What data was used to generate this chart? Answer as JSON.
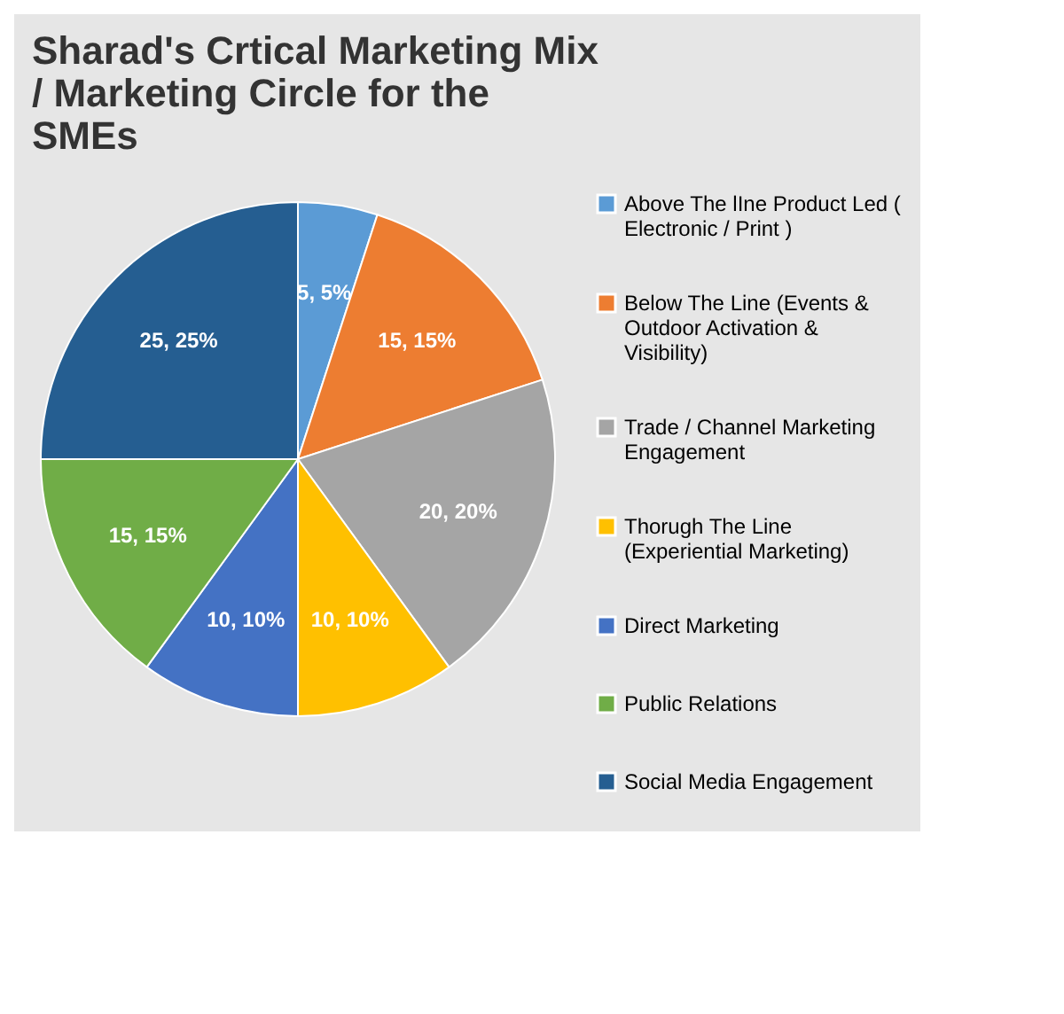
{
  "chart_data": {
    "type": "pie",
    "title": "Sharad's Crtical Marketing Mix / Marketing Circle for the SMEs",
    "categories": [
      "Above The lIne Product Led ( Electronic / Print )",
      "Below The Line (Events & Outdoor Activation & Visibility)",
      "Trade / Channel Marketing Engagement",
      "Thorugh The Line (Experiential Marketing)",
      "Direct Marketing",
      "Public Relations",
      "Social Media Engagement"
    ],
    "values": [
      5,
      15,
      20,
      10,
      10,
      15,
      25
    ],
    "colors": [
      "#5b9bd5",
      "#ed7d31",
      "#a5a5a5",
      "#ffc000",
      "#4472c4",
      "#70ad47",
      "#255e91"
    ],
    "value_labels": [
      "5, 5%",
      "15, 15%",
      "20, 20%",
      "10, 10%",
      "10, 10%",
      "15, 15%",
      "25, 25%"
    ],
    "legend": "right"
  }
}
